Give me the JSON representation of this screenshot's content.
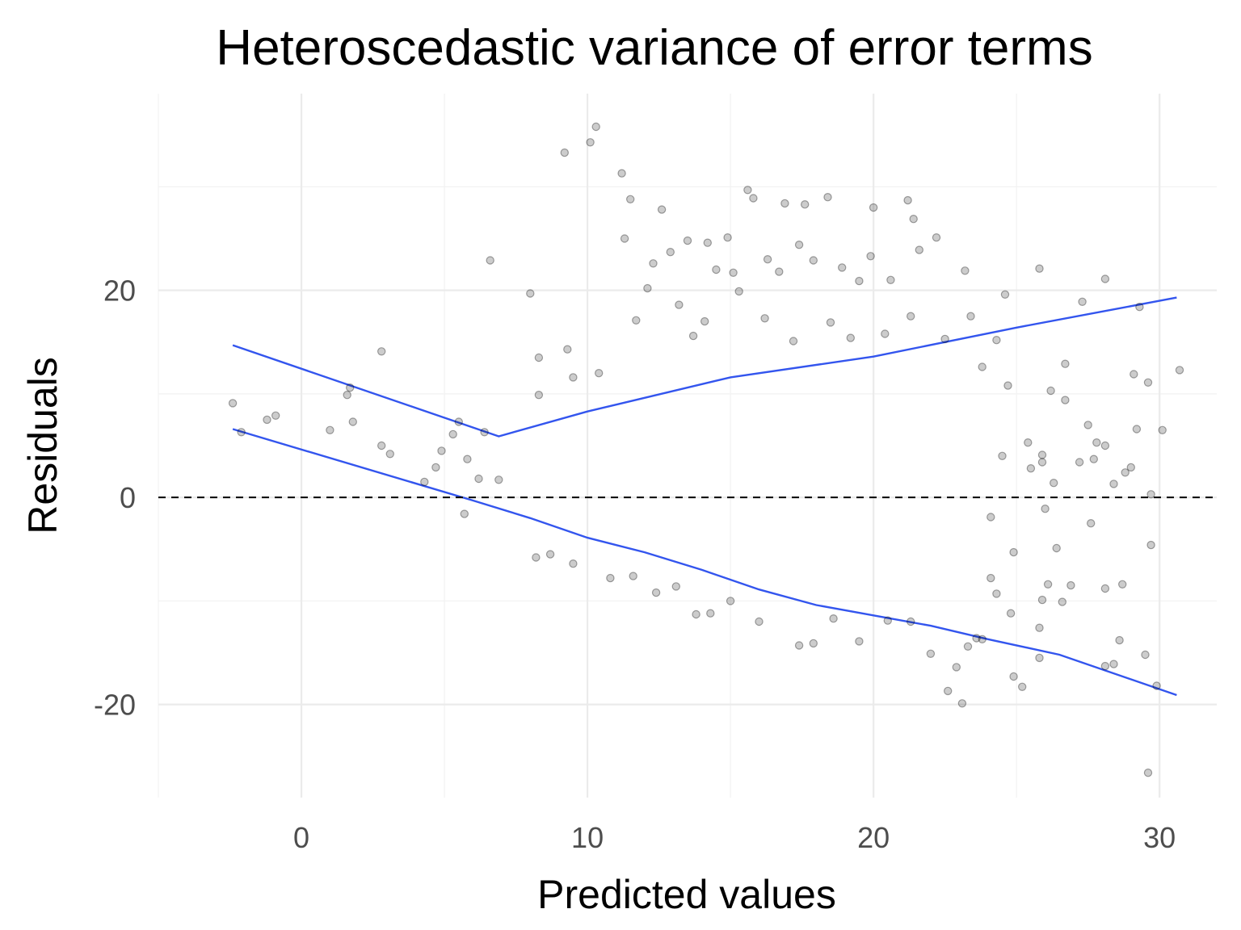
{
  "chart_data": {
    "type": "scatter",
    "title": "Heteroscedastic variance of error terms",
    "xlabel": "Predicted values",
    "ylabel": "Residuals",
    "xlim": [
      -5,
      32
    ],
    "ylim": [
      -29,
      39
    ],
    "x_ticks": [
      0,
      10,
      20,
      30
    ],
    "y_ticks": [
      -20,
      0,
      20
    ],
    "x_tick_labels": [
      "0",
      "10",
      "20",
      "30"
    ],
    "y_tick_labels": [
      "-20",
      "0",
      "20"
    ],
    "grid": true,
    "reference_line": {
      "y": 0,
      "style": "dashed",
      "color": "#000000"
    },
    "point_color": "#000000",
    "point_alpha": 0.2,
    "band_color": "#3355ee",
    "upper_band": [
      [
        -2.4,
        14.7
      ],
      [
        6.9,
        5.9
      ],
      [
        10,
        8.3
      ],
      [
        15,
        11.6
      ],
      [
        20,
        13.6
      ],
      [
        25,
        16.4
      ],
      [
        30.6,
        19.3
      ]
    ],
    "lower_band": [
      [
        -2.4,
        6.6
      ],
      [
        6.0,
        -0.3
      ],
      [
        8,
        -2.0
      ],
      [
        10,
        -3.9
      ],
      [
        12,
        -5.3
      ],
      [
        14,
        -7.0
      ],
      [
        16,
        -8.9
      ],
      [
        18,
        -10.4
      ],
      [
        20,
        -11.4
      ],
      [
        22,
        -12.4
      ],
      [
        24,
        -13.7
      ],
      [
        26.5,
        -15.2
      ],
      [
        30.6,
        -19.1
      ]
    ],
    "points": [
      [
        -2.4,
        9.1
      ],
      [
        -2.1,
        6.3
      ],
      [
        -1.2,
        7.5
      ],
      [
        -0.9,
        7.9
      ],
      [
        1.0,
        6.5
      ],
      [
        1.6,
        9.9
      ],
      [
        1.7,
        10.6
      ],
      [
        1.8,
        7.3
      ],
      [
        2.8,
        14.1
      ],
      [
        2.8,
        5.0
      ],
      [
        3.1,
        4.2
      ],
      [
        4.3,
        1.5
      ],
      [
        4.7,
        2.9
      ],
      [
        4.9,
        4.5
      ],
      [
        5.3,
        6.1
      ],
      [
        5.5,
        7.3
      ],
      [
        5.7,
        -1.6
      ],
      [
        5.8,
        3.7
      ],
      [
        6.2,
        1.8
      ],
      [
        6.6,
        22.9
      ],
      [
        6.4,
        6.3
      ],
      [
        6.9,
        1.7
      ],
      [
        8.0,
        19.7
      ],
      [
        8.3,
        9.9
      ],
      [
        8.3,
        13.5
      ],
      [
        9.2,
        33.3
      ],
      [
        9.3,
        14.3
      ],
      [
        9.5,
        11.6
      ],
      [
        10.1,
        34.3
      ],
      [
        10.3,
        35.8
      ],
      [
        10.4,
        12.0
      ],
      [
        11.2,
        31.3
      ],
      [
        11.3,
        25.0
      ],
      [
        11.5,
        28.8
      ],
      [
        12.3,
        22.6
      ],
      [
        12.6,
        27.8
      ],
      [
        12.9,
        23.7
      ],
      [
        13.5,
        24.8
      ],
      [
        14.2,
        24.6
      ],
      [
        14.5,
        22.0
      ],
      [
        14.9,
        25.1
      ],
      [
        15.1,
        21.7
      ],
      [
        15.6,
        29.7
      ],
      [
        15.8,
        28.9
      ],
      [
        16.3,
        23.0
      ],
      [
        16.7,
        21.8
      ],
      [
        16.9,
        28.4
      ],
      [
        17.4,
        24.4
      ],
      [
        17.6,
        28.3
      ],
      [
        17.9,
        22.9
      ],
      [
        18.4,
        29.0
      ],
      [
        18.9,
        22.2
      ],
      [
        19.5,
        20.9
      ],
      [
        19.9,
        23.3
      ],
      [
        20.0,
        28.0
      ],
      [
        20.6,
        21.0
      ],
      [
        21.2,
        28.7
      ],
      [
        21.4,
        26.9
      ],
      [
        21.6,
        23.9
      ],
      [
        22.2,
        25.1
      ],
      [
        23.2,
        21.9
      ],
      [
        25.8,
        22.1
      ],
      [
        28.1,
        21.1
      ],
      [
        27.3,
        18.9
      ],
      [
        29.3,
        18.4
      ],
      [
        30.7,
        12.3
      ],
      [
        30.1,
        6.5
      ],
      [
        29.2,
        6.6
      ],
      [
        29.6,
        11.1
      ],
      [
        29.7,
        0.3
      ],
      [
        29.7,
        -4.6
      ],
      [
        29.5,
        -15.2
      ],
      [
        29.6,
        -26.6
      ],
      [
        29.9,
        -18.2
      ],
      [
        28.6,
        -13.8
      ],
      [
        28.1,
        -16.3
      ],
      [
        28.7,
        -8.4
      ],
      [
        28.1,
        -8.8
      ],
      [
        27.8,
        5.3
      ],
      [
        28.1,
        5.0
      ],
      [
        27.7,
        3.7
      ],
      [
        27.2,
        3.4
      ],
      [
        26.7,
        9.4
      ],
      [
        26.7,
        12.9
      ],
      [
        26.2,
        10.3
      ],
      [
        26.4,
        -4.9
      ],
      [
        26.1,
        -8.4
      ],
      [
        25.8,
        -15.5
      ],
      [
        25.8,
        -12.6
      ],
      [
        25.2,
        -18.3
      ],
      [
        24.9,
        -17.3
      ],
      [
        24.8,
        -11.2
      ],
      [
        24.3,
        -9.3
      ],
      [
        22.6,
        -18.7
      ],
      [
        22.9,
        -16.4
      ],
      [
        23.1,
        -19.9
      ],
      [
        23.8,
        -13.7
      ],
      [
        23.3,
        -14.4
      ],
      [
        28.4,
        -16.1
      ],
      [
        26.9,
        -8.5
      ],
      [
        25.5,
        2.8
      ],
      [
        26.0,
        -1.1
      ],
      [
        25.9,
        4.1
      ],
      [
        27.6,
        -2.5
      ],
      [
        26.6,
        -10.1
      ],
      [
        25.9,
        -9.9
      ],
      [
        29.0,
        2.9
      ],
      [
        28.8,
        2.4
      ],
      [
        28.4,
        1.3
      ],
      [
        29.1,
        11.9
      ],
      [
        13.8,
        -11.3
      ],
      [
        14.3,
        -11.2
      ],
      [
        15.0,
        -10.0
      ],
      [
        16.0,
        -12.0
      ],
      [
        17.4,
        -14.3
      ],
      [
        17.9,
        -14.1
      ],
      [
        18.6,
        -11.7
      ],
      [
        19.5,
        -13.9
      ],
      [
        20.5,
        -11.9
      ],
      [
        21.3,
        -12.0
      ],
      [
        22.0,
        -15.1
      ],
      [
        23.6,
        -13.6
      ],
      [
        13.2,
        18.6
      ],
      [
        12.1,
        20.2
      ],
      [
        11.7,
        17.1
      ],
      [
        13.7,
        15.6
      ],
      [
        14.1,
        17.0
      ],
      [
        15.3,
        19.9
      ],
      [
        16.2,
        17.3
      ],
      [
        17.2,
        15.1
      ],
      [
        18.5,
        16.9
      ],
      [
        19.2,
        15.4
      ],
      [
        20.4,
        15.8
      ],
      [
        21.3,
        17.5
      ],
      [
        22.5,
        15.3
      ],
      [
        23.4,
        17.5
      ],
      [
        24.3,
        15.2
      ],
      [
        24.6,
        19.6
      ],
      [
        23.8,
        12.6
      ],
      [
        24.7,
        10.8
      ],
      [
        25.4,
        5.3
      ],
      [
        25.9,
        3.4
      ],
      [
        26.3,
        1.4
      ],
      [
        27.5,
        7.0
      ],
      [
        24.5,
        4.0
      ],
      [
        24.1,
        -1.9
      ],
      [
        24.9,
        -5.3
      ],
      [
        24.1,
        -7.8
      ],
      [
        9.5,
        -6.4
      ],
      [
        8.7,
        -5.5
      ],
      [
        8.2,
        -5.8
      ],
      [
        10.8,
        -7.8
      ],
      [
        11.6,
        -7.6
      ],
      [
        12.4,
        -9.2
      ],
      [
        13.1,
        -8.6
      ]
    ]
  }
}
